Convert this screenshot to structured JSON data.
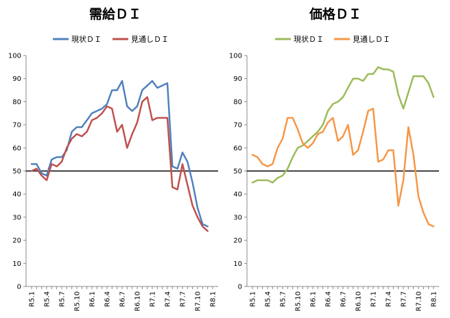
{
  "chart_data": [
    {
      "type": "line",
      "title": "需給ＤＩ",
      "x": [
        "R5.1",
        "R5.2",
        "R5.3",
        "R5.4",
        "R5.5",
        "R5.6",
        "R5.7",
        "R5.8",
        "R5.9",
        "R5.10",
        "R5.11",
        "R5.12",
        "R6.1",
        "R6.2",
        "R6.3",
        "R6.4",
        "R6.5",
        "R6.6",
        "R6.7",
        "R6.8",
        "R6.9",
        "R6.10",
        "R6.11",
        "R6.12",
        "R7.1",
        "R7.2",
        "R7.3",
        "R7.4",
        "R7.5",
        "R7.6",
        "R7.7",
        "R7.8",
        "R7.9",
        "R7.10",
        "R7.11",
        "R7.12",
        "R8.1"
      ],
      "xticks": [
        "R5.1",
        "R5.4",
        "R5.7",
        "R5.10",
        "R6.1",
        "R6.4",
        "R6.7",
        "R6.10",
        "R7.1",
        "R7.4",
        "R7.7",
        "R7.10",
        "R8.1"
      ],
      "ylim": [
        0,
        100
      ],
      "yticks": [
        0,
        10,
        20,
        30,
        40,
        50,
        60,
        70,
        80,
        90,
        100
      ],
      "reference_line": 50,
      "grid": false,
      "legend_position": "top",
      "series": [
        {
          "name": "現状ＤＩ",
          "color": "#4F81BD",
          "values": [
            53,
            53,
            49,
            48,
            55,
            56,
            56,
            59,
            67,
            69,
            69,
            72,
            75,
            76,
            77,
            79,
            85,
            85,
            89,
            78,
            76,
            78,
            85,
            87,
            89,
            86,
            87,
            88,
            52,
            51,
            58,
            54,
            45,
            34,
            27,
            26,
            null
          ]
        },
        {
          "name": "見通しＤＩ",
          "color": "#C0504D",
          "values": [
            50,
            51,
            48,
            46,
            53,
            52,
            54,
            60,
            64,
            66,
            65,
            67,
            72,
            73,
            75,
            78,
            77,
            67,
            70,
            60,
            66,
            71,
            80,
            82,
            72,
            73,
            73,
            73,
            43,
            42,
            53,
            44,
            35,
            30,
            26,
            24,
            null
          ]
        }
      ]
    },
    {
      "type": "line",
      "title": "価格ＤＩ",
      "x": [
        "R5.1",
        "R5.2",
        "R5.3",
        "R5.4",
        "R5.5",
        "R5.6",
        "R5.7",
        "R5.8",
        "R5.9",
        "R5.10",
        "R5.11",
        "R5.12",
        "R6.1",
        "R6.2",
        "R6.3",
        "R6.4",
        "R6.5",
        "R6.6",
        "R6.7",
        "R6.8",
        "R6.9",
        "R6.10",
        "R6.11",
        "R6.12",
        "R7.1",
        "R7.2",
        "R7.3",
        "R7.4",
        "R7.5",
        "R7.6",
        "R7.7",
        "R7.8",
        "R7.9",
        "R7.10",
        "R7.11",
        "R7.12",
        "R8.1"
      ],
      "xticks": [
        "R5.1",
        "R5.4",
        "R5.7",
        "R5.10",
        "R6.1",
        "R6.4",
        "R6.7",
        "R6.10",
        "R7.1",
        "R7.4",
        "R7.7",
        "R7.10",
        "R8.1"
      ],
      "ylim": [
        0,
        100
      ],
      "yticks": [
        0,
        10,
        20,
        30,
        40,
        50,
        60,
        70,
        80,
        90,
        100
      ],
      "reference_line": 50,
      "grid": false,
      "legend_position": "top",
      "series": [
        {
          "name": "現状ＤＩ",
          "color": "#9BBB59",
          "values": [
            45,
            46,
            46,
            46,
            45,
            47,
            48,
            51,
            56,
            60,
            61,
            63,
            65,
            67,
            70,
            76,
            79,
            80,
            82,
            86,
            90,
            90,
            89,
            92,
            92,
            95,
            94,
            94,
            93,
            83,
            77,
            84,
            91,
            91,
            91,
            88,
            82
          ]
        },
        {
          "name": "見通しＤＩ",
          "color": "#F79646",
          "values": [
            57,
            56,
            53,
            52,
            53,
            60,
            64,
            73,
            73,
            68,
            62,
            60,
            62,
            66,
            67,
            71,
            73,
            63,
            65,
            70,
            57,
            59,
            67,
            76,
            77,
            54,
            55,
            59,
            59,
            35,
            46,
            69,
            57,
            39,
            32,
            27,
            26
          ]
        }
      ]
    }
  ]
}
